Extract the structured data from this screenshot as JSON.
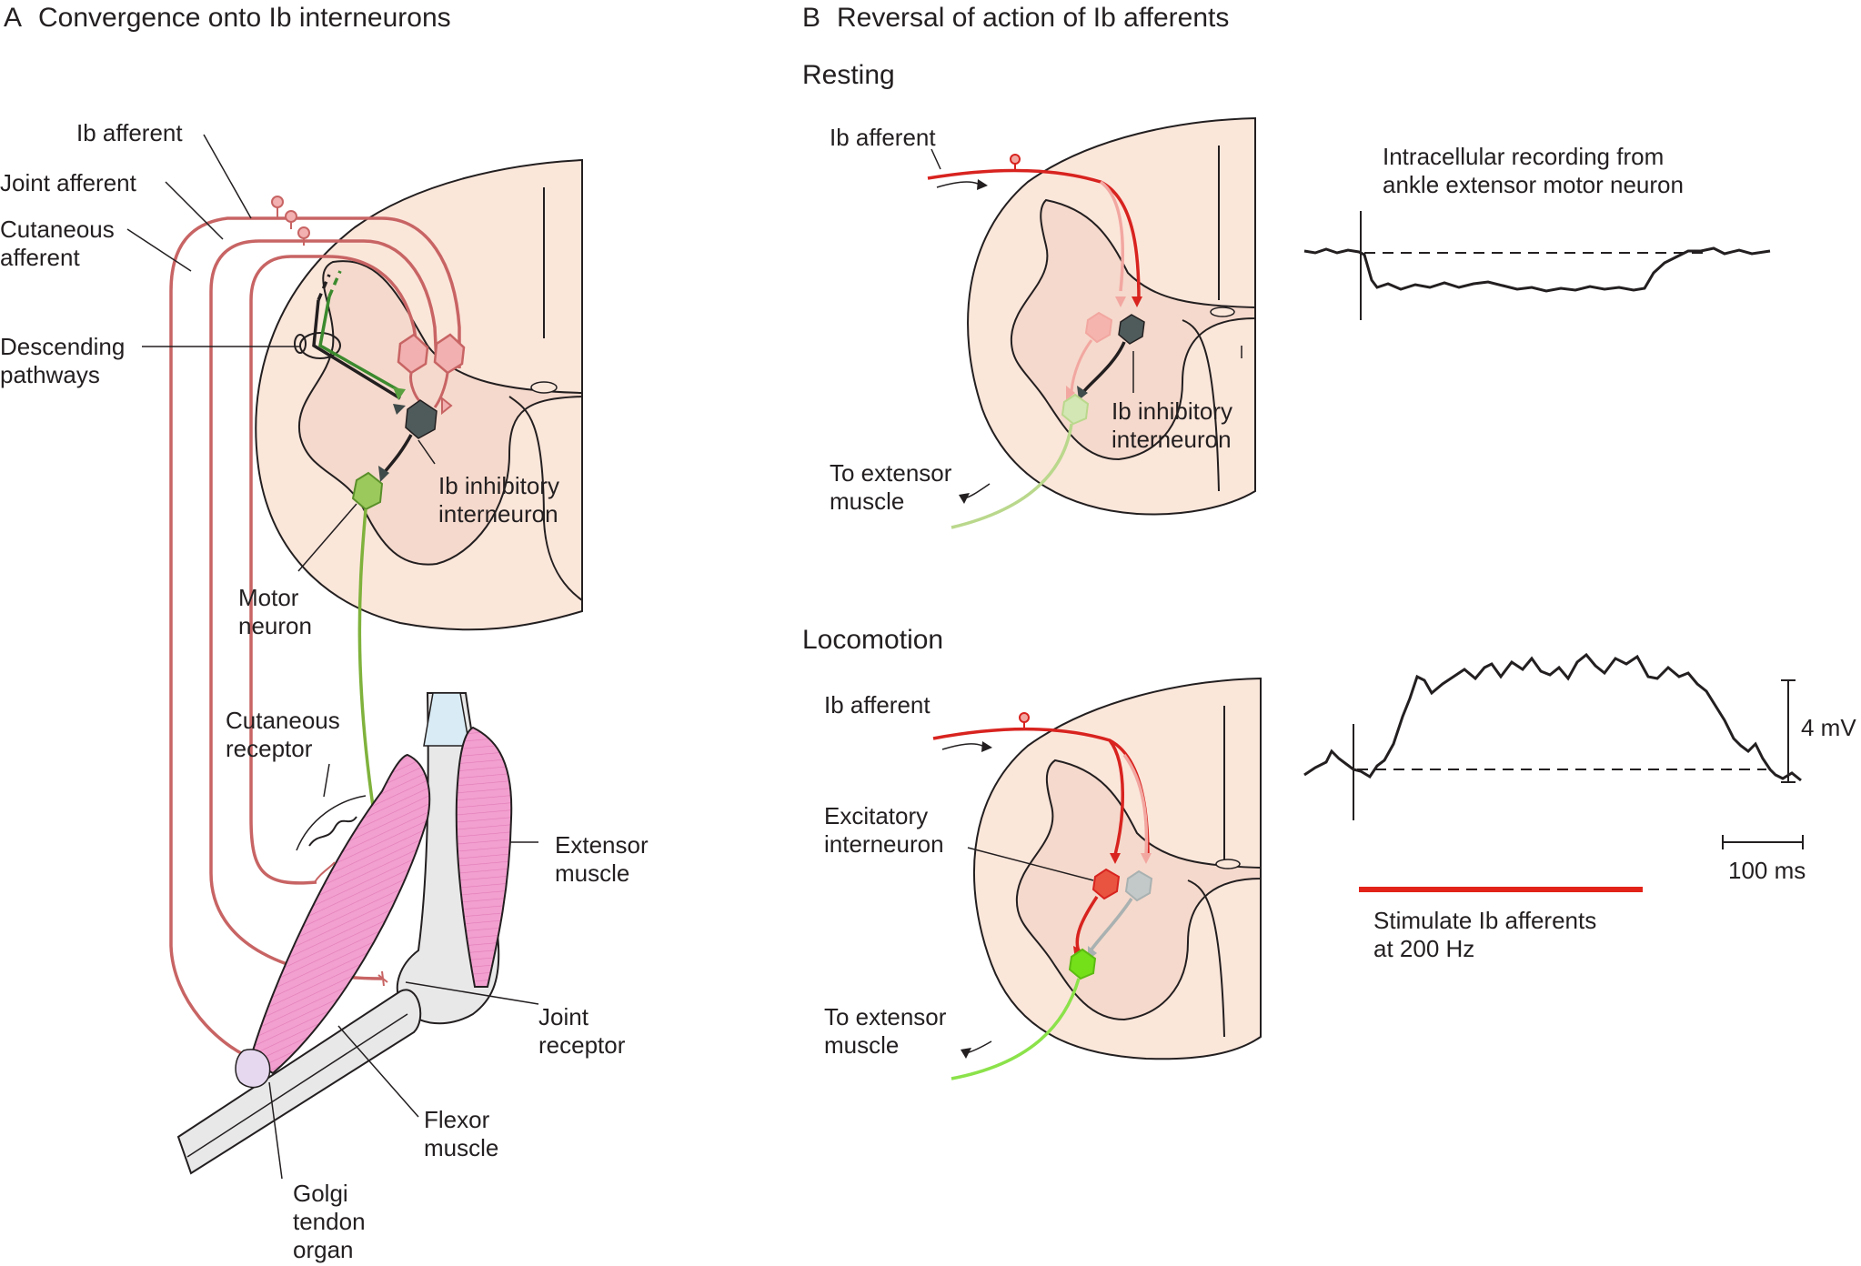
{
  "colors": {
    "cord_outer": "#fbe6da",
    "cord_gray": "#f5d9cc",
    "outline": "#231f20",
    "afferent_pink": "#c86464",
    "afferent_red": "#d8231f",
    "afferent_light": "#f2a7a1",
    "interneuron_dark": "#4f5b5b",
    "interneuron_gray": "#a9b1b1",
    "motor_green": "#7fb23c",
    "motor_light": "#bad88c",
    "motor_bright": "#73e019",
    "muscle_pink": "#f2a0cf",
    "bone_gray": "#e8e8e8",
    "tendon_blue": "#d9ecf6",
    "stim_bar": "#e2231a"
  },
  "panelA": {
    "title_letter": "A",
    "title": "Convergence onto Ib interneurons",
    "labels": {
      "ib_afferent": "Ib afferent",
      "joint_afferent": "Joint afferent",
      "cutaneous_afferent_1": "Cutaneous",
      "cutaneous_afferent_2": "afferent",
      "descending_1": "Descending",
      "descending_2": "pathways",
      "ib_inhibitory_1": "Ib inhibitory",
      "ib_inhibitory_2": "interneuron",
      "motor_neuron_1": "Motor",
      "motor_neuron_2": "neuron",
      "cutaneous_receptor_1": "Cutaneous",
      "cutaneous_receptor_2": "receptor",
      "extensor_1": "Extensor",
      "extensor_2": "muscle",
      "joint_receptor_1": "Joint",
      "joint_receptor_2": "receptor",
      "flexor_1": "Flexor",
      "flexor_2": "muscle",
      "golgi_1": "Golgi",
      "golgi_2": "tendon",
      "golgi_3": "organ"
    }
  },
  "panelB": {
    "title_letter": "B",
    "title": "Reversal of action of Ib afferents",
    "resting": {
      "title": "Resting",
      "ib_afferent": "Ib afferent",
      "ib_inhibitory_1": "Ib inhibitory",
      "ib_inhibitory_2": "interneuron",
      "to_extensor_1": "To extensor",
      "to_extensor_2": "muscle",
      "recording_1": "Intracellular recording from",
      "recording_2": "ankle extensor motor neuron"
    },
    "locomotion": {
      "title": "Locomotion",
      "ib_afferent": "Ib afferent",
      "excitatory_1": "Excitatory",
      "excitatory_2": "interneuron",
      "to_extensor_1": "To extensor",
      "to_extensor_2": "muscle",
      "scale_voltage": "4 mV",
      "scale_time": "100 ms",
      "stim_1": "Stimulate Ib afferents",
      "stim_2": "at 200 Hz"
    }
  }
}
